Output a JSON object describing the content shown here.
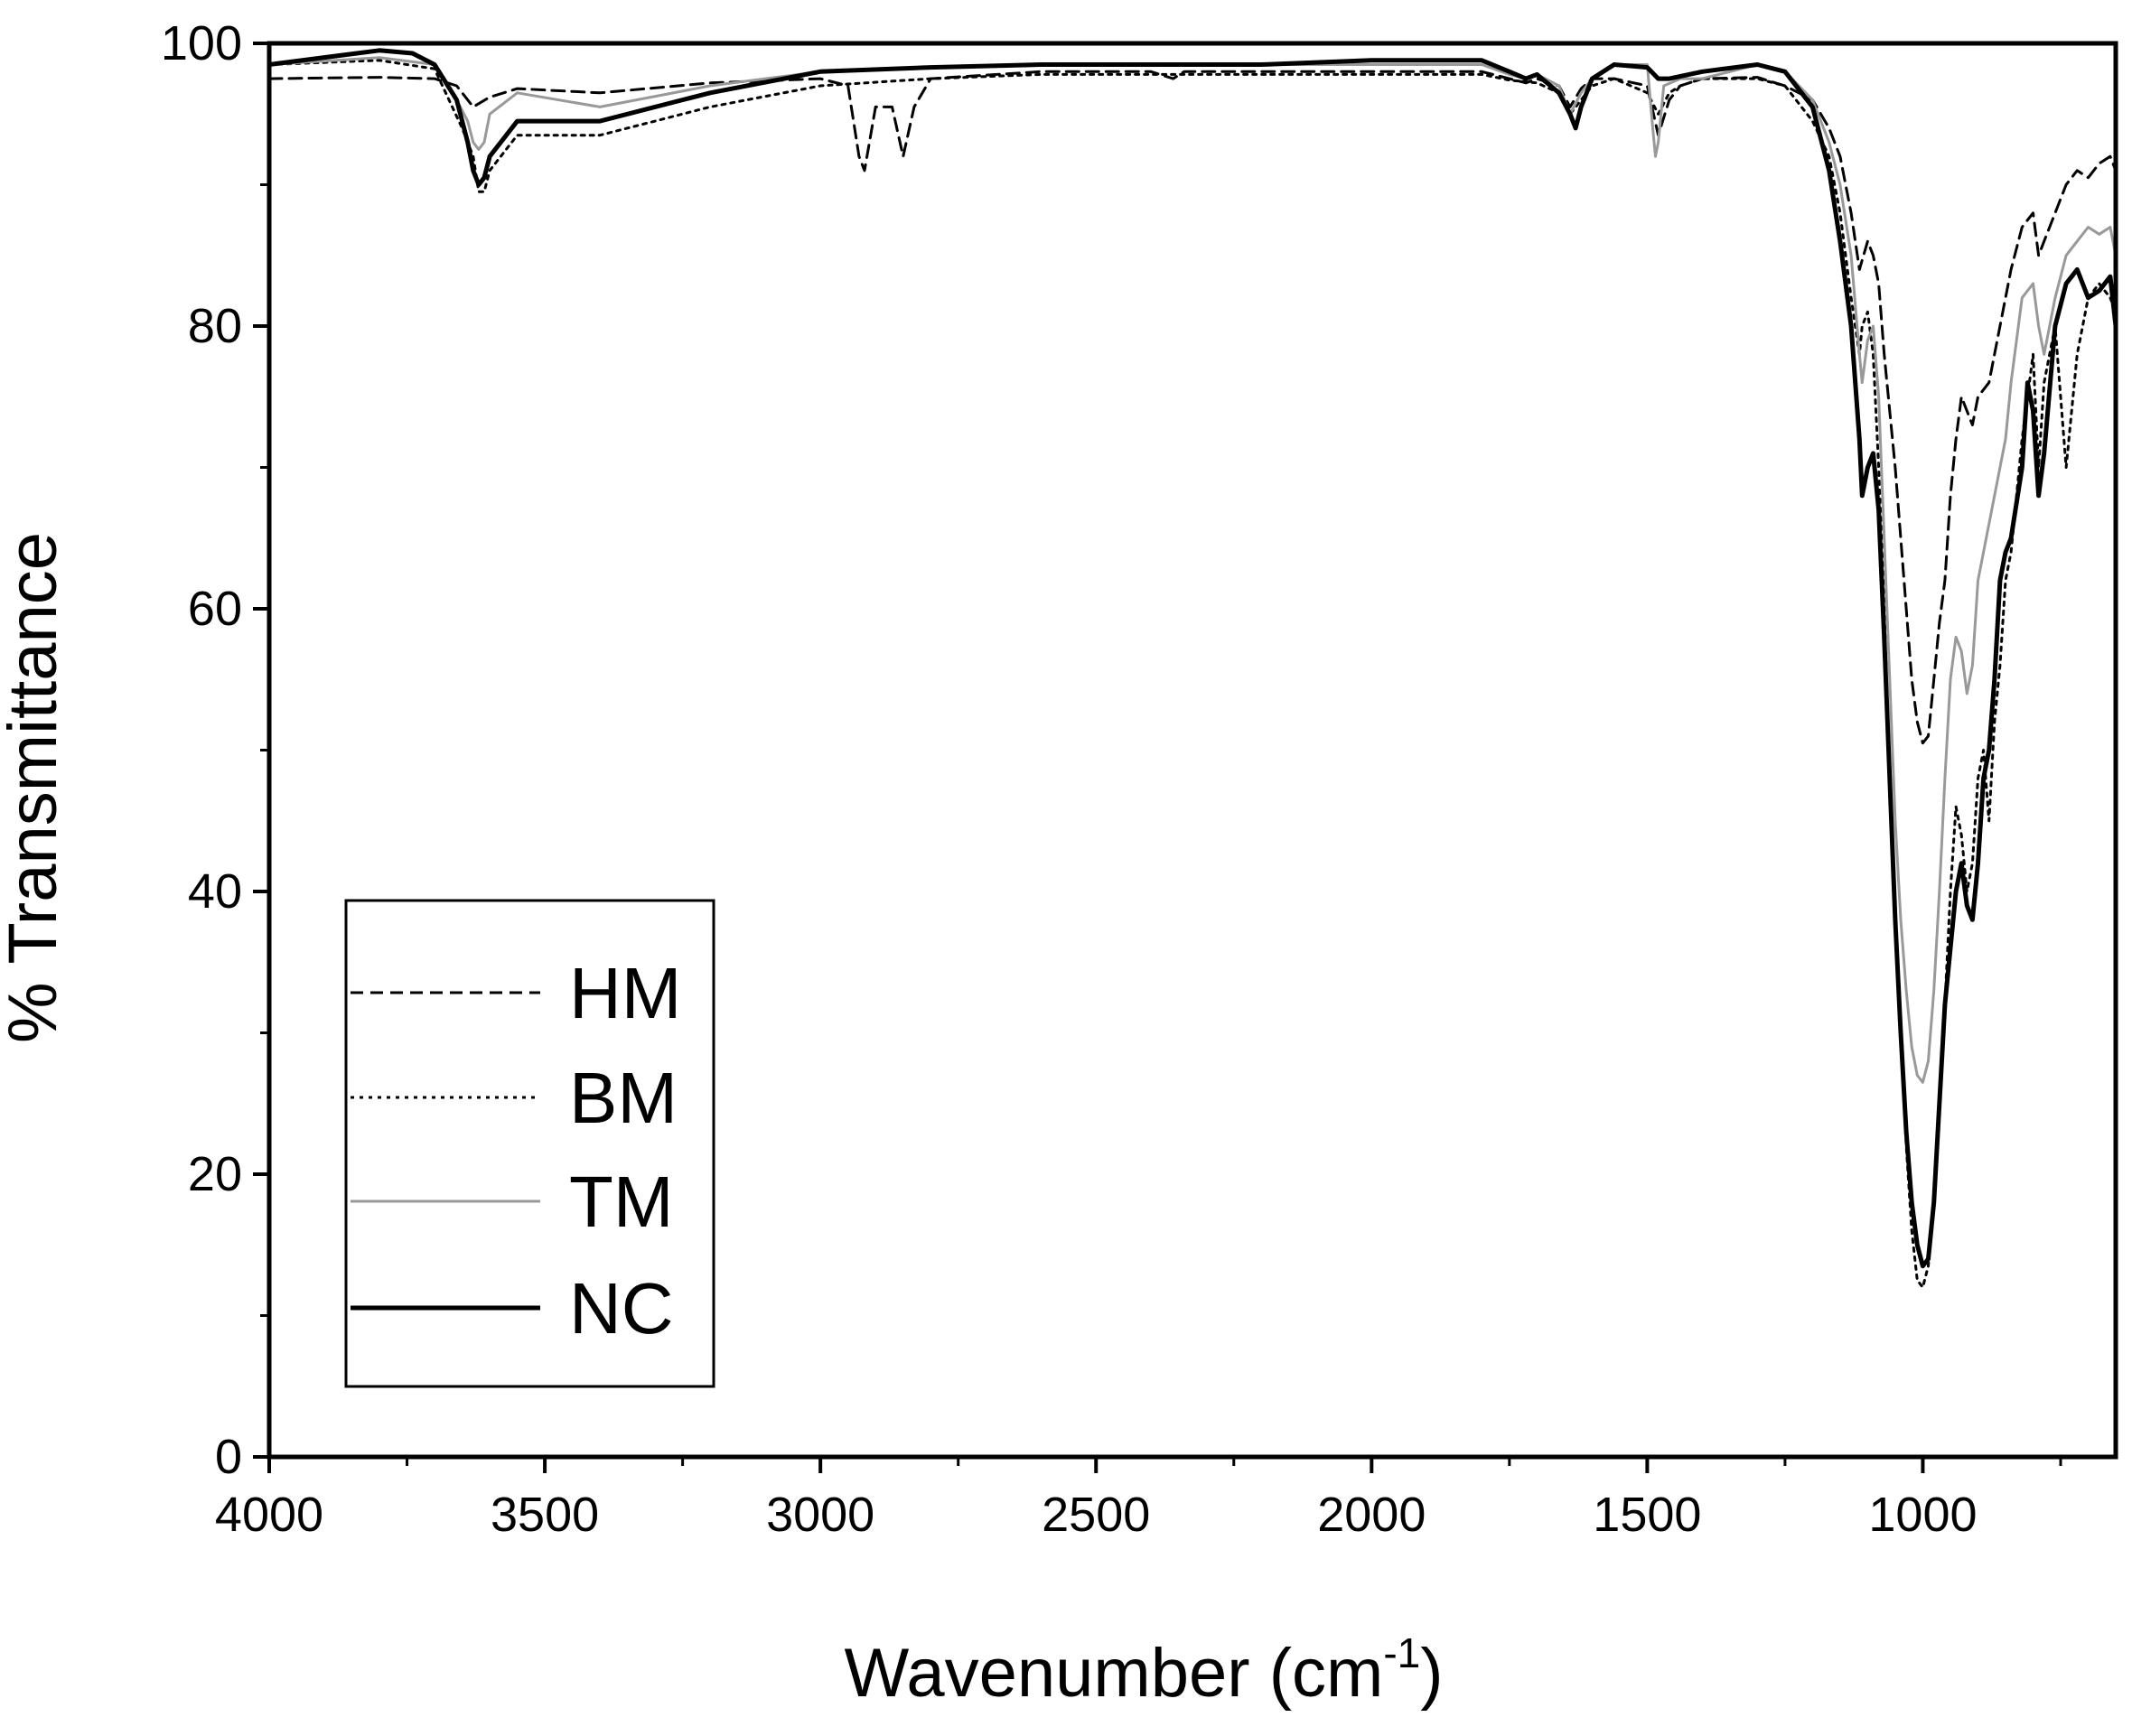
{
  "chart_data": {
    "type": "line",
    "title": "",
    "xlabel": "Wavenumber (cm",
    "xlabel_sup": "-1",
    "xlabel_close": ")",
    "ylabel": "% Transmittance",
    "xlim": [
      4000,
      650
    ],
    "x_reversed": true,
    "ylim": [
      0,
      100
    ],
    "x_ticks": [
      4000,
      3500,
      3000,
      2500,
      2000,
      1500,
      1000
    ],
    "x_tick_labels": [
      "4000",
      "3500",
      "3000",
      "2500",
      "2000",
      "1500",
      "1000"
    ],
    "x_minor_ticks": [
      3750,
      3250,
      2750,
      2250,
      1750,
      1250,
      750
    ],
    "y_ticks": [
      0,
      20,
      40,
      60,
      80,
      100
    ],
    "y_tick_labels": [
      "0",
      "20",
      "40",
      "60",
      "80",
      "100"
    ],
    "y_minor_ticks": [
      10,
      30,
      50,
      70,
      90
    ],
    "grid": false,
    "legend_position": "bottom-left",
    "series": [
      {
        "name": "HM",
        "color": "#000000",
        "dash": "dashed",
        "x": [
          4000,
          3800,
          3700,
          3660,
          3630,
          3600,
          3550,
          3400,
          3200,
          3000,
          2950,
          2930,
          2920,
          2900,
          2870,
          2850,
          2830,
          2800,
          2600,
          2400,
          2360,
          2340,
          2200,
          2000,
          1800,
          1750,
          1720,
          1700,
          1660,
          1640,
          1620,
          1600,
          1560,
          1500,
          1480,
          1460,
          1440,
          1400,
          1300,
          1250,
          1200,
          1170,
          1150,
          1130,
          1115,
          1100,
          1090,
          1080,
          1070,
          1060,
          1050,
          1040,
          1030,
          1020,
          1010,
          1000,
          990,
          980,
          970,
          960,
          950,
          940,
          930,
          920,
          910,
          900,
          880,
          860,
          840,
          820,
          800,
          790,
          780,
          760,
          740,
          720,
          700,
          680,
          660,
          650
        ],
        "y": [
          97.5,
          97.6,
          97.5,
          97,
          95.5,
          96.2,
          96.8,
          96.5,
          97.2,
          97.5,
          97,
          92,
          91,
          95.5,
          95.5,
          92,
          95.5,
          97.5,
          98,
          98,
          97.5,
          98,
          98,
          98,
          98,
          97.5,
          97.2,
          97.5,
          97,
          95.5,
          96.8,
          97.5,
          97.5,
          97,
          93.5,
          96,
          97,
          97.5,
          97.6,
          97,
          96,
          94,
          92,
          88,
          84,
          86,
          85,
          83,
          78,
          74,
          70,
          65,
          60,
          55,
          52,
          50.5,
          51,
          55,
          59,
          62,
          68,
          72,
          75,
          74,
          73,
          75,
          76,
          80,
          84,
          87,
          88,
          85,
          86,
          88,
          90,
          91,
          90.5,
          91.5,
          92,
          91
        ]
      },
      {
        "name": "BM",
        "color": "#000000",
        "dash": "dotted",
        "x": [
          4000,
          3800,
          3700,
          3650,
          3630,
          3620,
          3610,
          3600,
          3550,
          3400,
          3200,
          3000,
          2800,
          2600,
          2400,
          2200,
          2000,
          1800,
          1750,
          1700,
          1660,
          1640,
          1620,
          1600,
          1560,
          1500,
          1480,
          1460,
          1440,
          1400,
          1300,
          1250,
          1200,
          1170,
          1150,
          1130,
          1115,
          1110,
          1100,
          1090,
          1080,
          1070,
          1060,
          1050,
          1040,
          1030,
          1020,
          1010,
          1000,
          990,
          980,
          970,
          960,
          950,
          940,
          930,
          920,
          910,
          900,
          890,
          880,
          870,
          860,
          850,
          840,
          820,
          800,
          790,
          780,
          760,
          740,
          720,
          700,
          680,
          660,
          650
        ],
        "y": [
          98.5,
          98.8,
          98.2,
          94,
          92,
          89.5,
          89.5,
          91,
          93.5,
          93.5,
          95.5,
          97,
          97.5,
          97.8,
          97.8,
          97.8,
          97.8,
          97.8,
          97.4,
          97.2,
          96.5,
          95,
          96,
          97,
          97.5,
          96.5,
          95,
          96.5,
          97,
          97.5,
          97.5,
          97,
          94.5,
          92,
          88,
          82,
          78,
          80,
          81,
          78,
          70,
          60,
          48,
          38,
          30,
          22,
          16,
          12.5,
          12,
          13.5,
          18,
          25,
          32,
          40,
          46,
          44,
          40,
          42,
          48,
          50,
          45,
          52,
          56,
          62,
          64,
          72,
          78,
          70,
          76,
          80,
          70,
          78,
          82,
          83,
          82,
          81
        ]
      },
      {
        "name": "TM",
        "color": "#999999",
        "dash": "solid",
        "x": [
          4000,
          3800,
          3700,
          3660,
          3640,
          3630,
          3620,
          3610,
          3600,
          3550,
          3400,
          3200,
          3000,
          2800,
          2600,
          2400,
          2200,
          2000,
          1800,
          1750,
          1720,
          1700,
          1660,
          1640,
          1620,
          1600,
          1560,
          1500,
          1490,
          1485,
          1480,
          1470,
          1440,
          1400,
          1300,
          1250,
          1200,
          1170,
          1150,
          1130,
          1115,
          1110,
          1100,
          1090,
          1080,
          1070,
          1060,
          1050,
          1040,
          1030,
          1020,
          1010,
          1000,
          990,
          980,
          970,
          960,
          950,
          940,
          930,
          920,
          910,
          900,
          890,
          880,
          870,
          860,
          850,
          840,
          820,
          800,
          790,
          780,
          760,
          740,
          720,
          700,
          680,
          660,
          650
        ],
        "y": [
          98.5,
          99,
          98.5,
          96,
          94.5,
          93,
          92.5,
          93,
          95,
          96.5,
          95.5,
          97,
          98,
          98.3,
          98.5,
          98.5,
          98.5,
          98.5,
          98.5,
          97.8,
          97.5,
          97.8,
          97,
          95,
          96.5,
          97.5,
          98.5,
          98.5,
          94,
          92,
          93,
          97,
          97.5,
          97.5,
          98.5,
          98,
          96,
          93,
          90,
          85,
          78,
          76,
          79,
          80,
          75,
          65,
          55,
          45,
          38,
          33,
          29,
          27,
          26.5,
          28,
          33,
          40,
          48,
          55,
          58,
          57,
          54,
          56,
          62,
          64,
          66,
          68,
          70,
          72,
          76,
          82,
          83,
          80,
          78,
          82,
          85,
          86,
          87,
          86.5,
          87,
          85
        ]
      },
      {
        "name": "NC",
        "color": "#000000",
        "dash": "solid",
        "x": [
          4000,
          3800,
          3740,
          3700,
          3660,
          3640,
          3630,
          3620,
          3610,
          3600,
          3550,
          3400,
          3200,
          3000,
          2800,
          2600,
          2400,
          2200,
          2000,
          1800,
          1750,
          1720,
          1700,
          1660,
          1640,
          1630,
          1620,
          1600,
          1560,
          1500,
          1480,
          1460,
          1400,
          1300,
          1250,
          1200,
          1170,
          1150,
          1130,
          1115,
          1110,
          1100,
          1090,
          1080,
          1070,
          1060,
          1050,
          1040,
          1030,
          1020,
          1010,
          1000,
          990,
          980,
          970,
          960,
          950,
          940,
          930,
          920,
          910,
          900,
          890,
          880,
          870,
          860,
          850,
          840,
          820,
          810,
          800,
          790,
          780,
          760,
          740,
          720,
          700,
          680,
          660,
          650
        ],
        "y": [
          98.5,
          99.5,
          99.3,
          98.5,
          96,
          93,
          91,
          90,
          90.5,
          92,
          94.5,
          94.5,
          96.5,
          98,
          98.3,
          98.5,
          98.5,
          98.5,
          98.8,
          98.8,
          98,
          97.5,
          97.8,
          96.5,
          95,
          94,
          95.5,
          97.5,
          98.5,
          98.3,
          97.5,
          97.5,
          98,
          98.5,
          98,
          95.5,
          91,
          86,
          80,
          72,
          68,
          70,
          71,
          67,
          58,
          48,
          38,
          30,
          23,
          18,
          15,
          13.5,
          14,
          18,
          25,
          32,
          36,
          40,
          42,
          39,
          38,
          42,
          48,
          50,
          55,
          62,
          64,
          65,
          70,
          76,
          74,
          68,
          71,
          80,
          83,
          84,
          82,
          82.5,
          83.5,
          80
        ]
      }
    ]
  }
}
